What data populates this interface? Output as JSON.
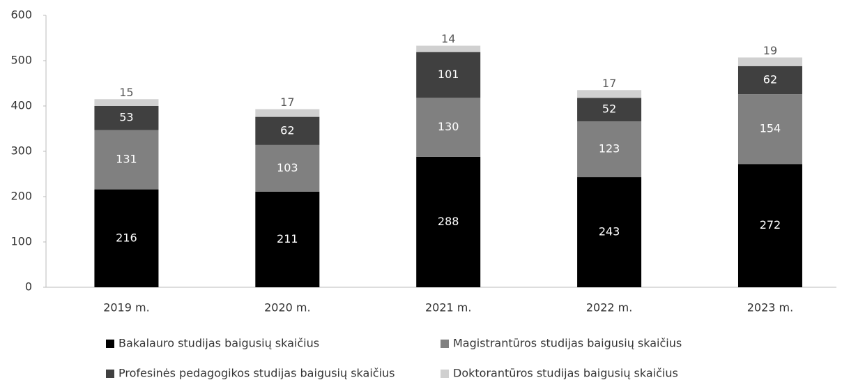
{
  "chart_data": {
    "type": "stacked_bar",
    "categories": [
      "2019 m.",
      "2020 m.",
      "2021 m.",
      "2022 m.",
      "2023 m."
    ],
    "series": [
      {
        "name": "Bakalauro studijas baigusių skaičius",
        "color": "#000000",
        "values": [
          216,
          211,
          288,
          243,
          272
        ]
      },
      {
        "name": "Magistrantūros studijas baigusių skaičius",
        "color": "#808080",
        "values": [
          131,
          103,
          130,
          123,
          154
        ]
      },
      {
        "name": "Profesinės pedagogikos studijas baigusių skaičius",
        "color": "#404040",
        "values": [
          53,
          62,
          101,
          52,
          62
        ]
      },
      {
        "name": "Doktorantūros studijas baigusių skaičius",
        "color": "#d0d0d0",
        "values": [
          15,
          17,
          14,
          17,
          19
        ]
      }
    ],
    "ylim": [
      0,
      600
    ],
    "yticks": [
      0,
      100,
      200,
      300,
      400,
      500,
      600
    ],
    "grid": false
  }
}
